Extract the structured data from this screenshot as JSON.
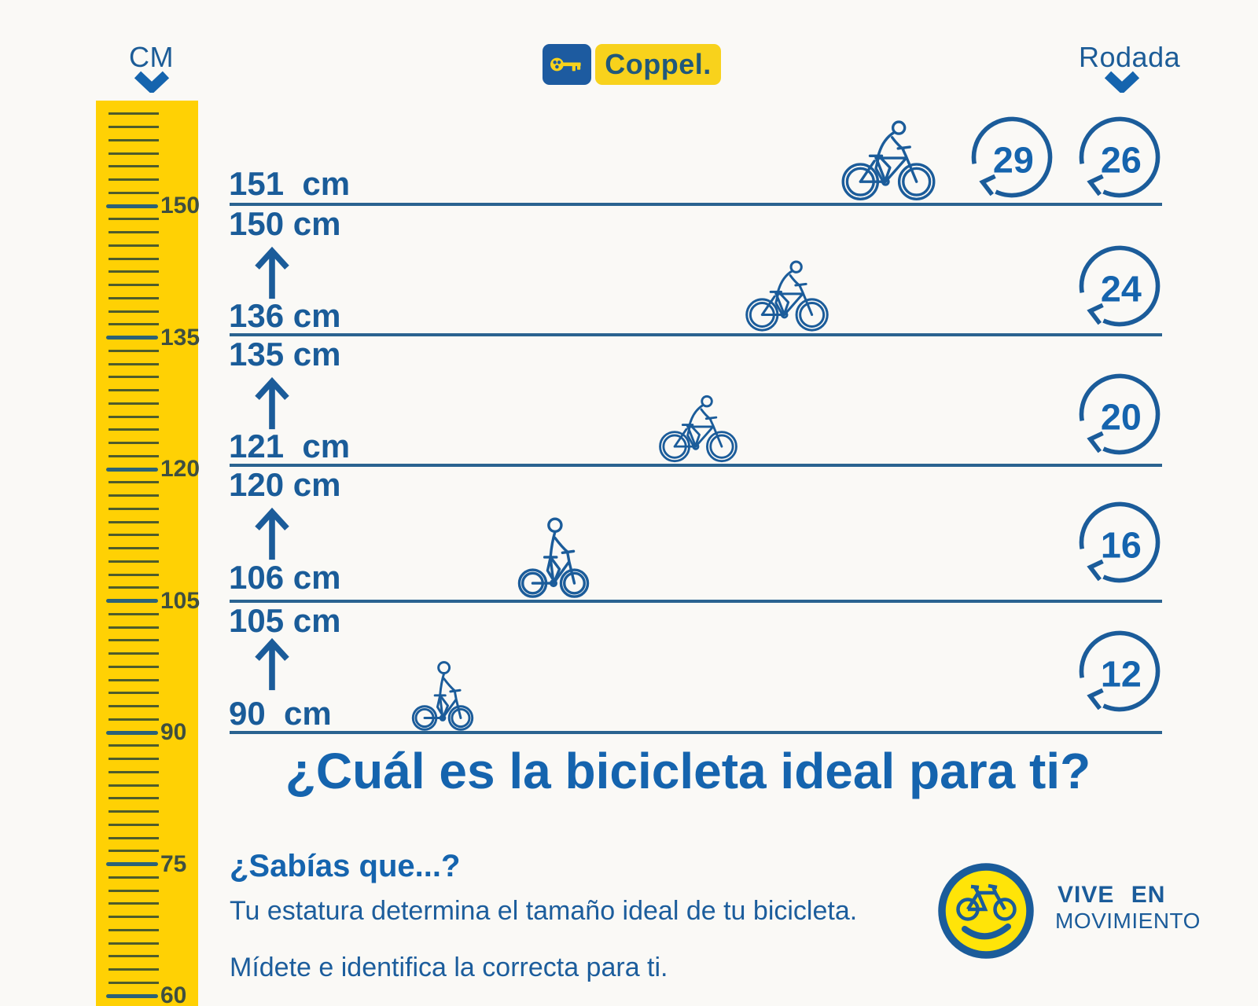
{
  "colors": {
    "background": "#faf9f6",
    "accent_blue": "#1b5c9a",
    "title_blue": "#1564ae",
    "line_blue": "#2a6390",
    "ruler_yellow": "#ffd104",
    "ruler_minor_tick": "#4e5c2b",
    "ruler_major_tick": "#2b6277",
    "ruler_label": "#3f4f40",
    "logo_key_box_blue": "#1d5ba0",
    "logo_yellow": "#f8d21c",
    "smiley_yellow": "#ffe408"
  },
  "header": {
    "cm_label": "CM",
    "rodada_label": "Rodada",
    "brand_text": "Coppel."
  },
  "ruler": {
    "unit": "cm",
    "major_labels": [
      "150",
      "135",
      "120",
      "105",
      "90",
      "75",
      "60"
    ]
  },
  "rows": [
    {
      "height_top": "151  cm",
      "height_bottom": "",
      "wheel_sizes": [
        "29",
        "26"
      ]
    },
    {
      "height_top": "150 cm",
      "height_bottom": "136 cm",
      "wheel_sizes": [
        "24"
      ]
    },
    {
      "height_top": "135 cm",
      "height_bottom": "121  cm",
      "wheel_sizes": [
        "20"
      ]
    },
    {
      "height_top": "120 cm",
      "height_bottom": "106 cm",
      "wheel_sizes": [
        "16"
      ]
    },
    {
      "height_top": "105 cm",
      "height_bottom": "90  cm",
      "wheel_sizes": [
        "12"
      ]
    }
  ],
  "title": "¿Cuál es la bicicleta ideal para ti?",
  "fact": {
    "heading": "¿Sabías que...?",
    "line1": "Tu estatura determina el tamaño ideal de tu bicicleta.",
    "line2": "Mídete e identifica la correcta para ti."
  },
  "footer_logo": {
    "line1": "VIVE EN",
    "line2": "MOVIMIENTO"
  }
}
